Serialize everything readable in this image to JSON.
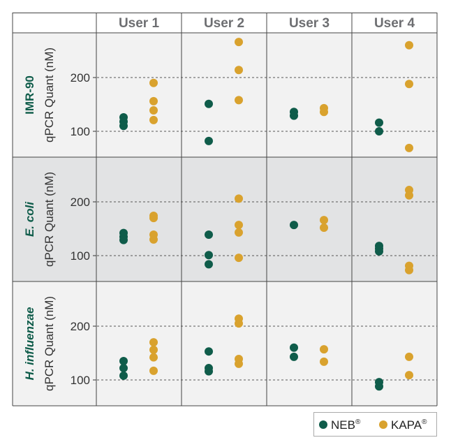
{
  "chart_data": {
    "type": "scatter",
    "ylabel": "qPCR Quant (nM)",
    "yticks": [
      100,
      200
    ],
    "ylim": [
      55,
      285
    ],
    "grid": "dashed at ticks",
    "legend_placement": "bottom-right",
    "columns": [
      "User 1",
      "User 2",
      "User 3",
      "User 4"
    ],
    "rows": [
      {
        "label": "IMR-90",
        "italic": false,
        "background": "#f2f2f2",
        "data": [
          {
            "NEB": [
              126,
              118,
              110
            ],
            "KAPA": [
              190,
              156,
              139,
              121
            ]
          },
          {
            "NEB": [
              151,
              82
            ],
            "KAPA": [
              266,
              214,
              158
            ]
          },
          {
            "NEB": [
              136,
              129
            ],
            "KAPA": [
              143,
              136
            ]
          },
          {
            "NEB": [
              116,
              100
            ],
            "KAPA": [
              260,
              188,
              69
            ]
          }
        ]
      },
      {
        "label": "E. coli",
        "italic": true,
        "background": "#e2e3e4",
        "data": [
          {
            "NEB": [
              142,
              135,
              129
            ],
            "KAPA": [
              174,
              170,
              139,
              130
            ]
          },
          {
            "NEB": [
              139,
              101,
              84
            ],
            "KAPA": [
              206,
              157,
              143,
              96
            ]
          },
          {
            "NEB": [
              157
            ],
            "KAPA": [
              166,
              152
            ]
          },
          {
            "NEB": [
              118,
              113,
              108
            ],
            "KAPA": [
              222,
              212,
              81,
              73
            ]
          }
        ]
      },
      {
        "label": "H. influenzae",
        "italic": true,
        "background": "#f2f2f2",
        "data": [
          {
            "NEB": [
              135,
              122,
              108
            ],
            "KAPA": [
              170,
              156,
              142,
              117
            ]
          },
          {
            "NEB": [
              153,
              122,
              116
            ],
            "KAPA": [
              214,
              205,
              139,
              130
            ]
          },
          {
            "NEB": [
              160,
              143
            ],
            "KAPA": [
              157,
              134
            ]
          },
          {
            "NEB": [
              96,
              88
            ],
            "KAPA": [
              143,
              109
            ]
          }
        ]
      }
    ],
    "series": [
      {
        "name": "NEB",
        "mark": "®",
        "color": "#0f5c4a"
      },
      {
        "name": "KAPA",
        "mark": "®",
        "color": "#d9a22e"
      }
    ]
  }
}
